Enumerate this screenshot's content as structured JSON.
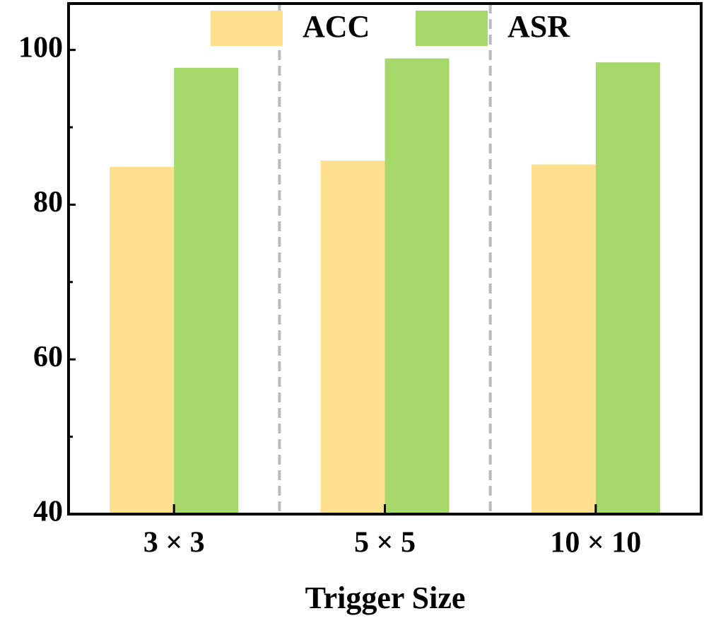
{
  "chart_data": {
    "type": "bar",
    "x_label": "Trigger Size",
    "categories": [
      "3 × 3",
      "5 × 5",
      "10 × 10"
    ],
    "series": [
      {
        "name": "ACC",
        "color": "#fee08f",
        "values": [
          84.9,
          85.7,
          85.2
        ]
      },
      {
        "name": "ASR",
        "color": "#a6d96a",
        "values": [
          97.7,
          98.9,
          98.4
        ]
      }
    ],
    "ylim": [
      40,
      106
    ],
    "yticks": [
      40,
      60,
      80,
      100
    ],
    "yminor_ticks": [
      50,
      70,
      90
    ],
    "category_separators": true,
    "legend": "top"
  }
}
